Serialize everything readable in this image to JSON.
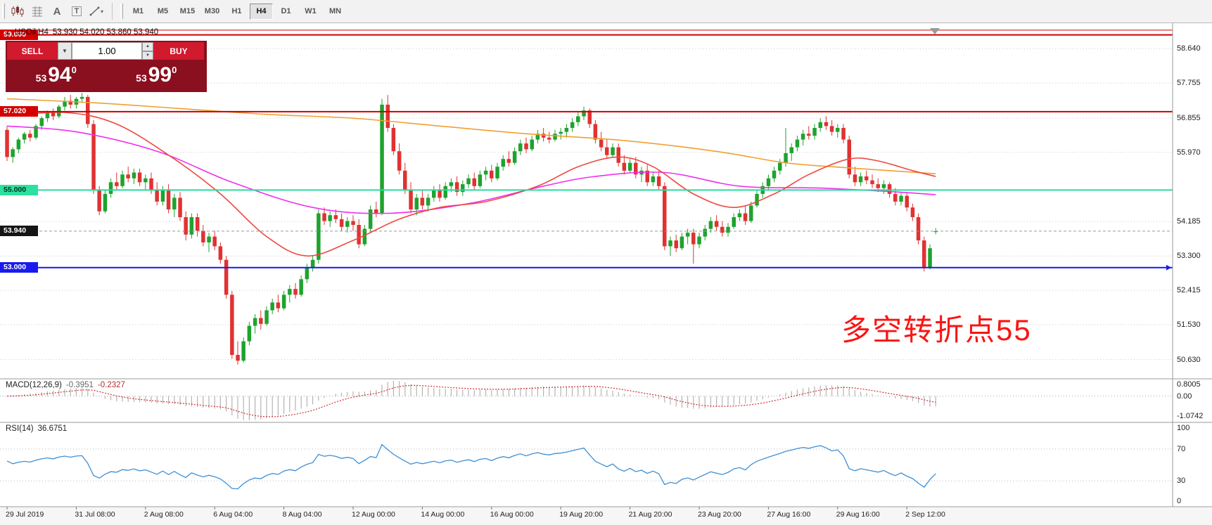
{
  "toolbar": {
    "icons": [
      {
        "name": "candlestick-chart-icon"
      },
      {
        "name": "chart-grid-icon"
      },
      {
        "name": "text-label-icon",
        "glyph": "A"
      },
      {
        "name": "text-box-icon",
        "glyph": "T"
      },
      {
        "name": "drawing-tools-icon",
        "glyph": "▾"
      }
    ],
    "timeframes": [
      {
        "label": "M1",
        "active": false
      },
      {
        "label": "M5",
        "active": false
      },
      {
        "label": "M15",
        "active": false
      },
      {
        "label": "M30",
        "active": false
      },
      {
        "label": "H1",
        "active": false
      },
      {
        "label": "H4",
        "active": true
      },
      {
        "label": "D1",
        "active": false
      },
      {
        "label": "W1",
        "active": false
      },
      {
        "label": "MN",
        "active": false
      }
    ]
  },
  "chart_header": {
    "collapse_icon": "▲",
    "symbol": "USOil,H4",
    "ohlc": "53.930 54.020 53.860 53.940"
  },
  "trade_panel": {
    "sell_label": "SELL",
    "buy_label": "BUY",
    "volume": "1.00",
    "caret_down": "▼",
    "caret_up": "▲",
    "sell_price": {
      "small": "53",
      "big": "94",
      "sup": "0"
    },
    "buy_price": {
      "small": "53",
      "big": "99",
      "sup": "0"
    }
  },
  "annotation": {
    "text": "多空转折点55",
    "color": "#fa1414"
  },
  "indicators": {
    "macd": {
      "label": "MACD(12,26,9)",
      "value_main": "-0.3951",
      "value_signal": "-0.2327",
      "axis": [
        "0.8005",
        "0.00",
        "-1.0742"
      ]
    },
    "rsi": {
      "label": "RSI(14)",
      "value": "36.6751",
      "axis": [
        "100",
        "70",
        "30",
        "0"
      ],
      "levels": [
        70,
        30
      ]
    }
  },
  "chart_data": {
    "type": "candlestick",
    "symbol": "USOil",
    "timeframe": "H4",
    "current_price": 53.94,
    "price_axis": {
      "labels": [
        58.64,
        57.755,
        56.855,
        55.97,
        54.185,
        53.3,
        52.415,
        51.53,
        50.63
      ],
      "badges": [
        {
          "text": "59.000",
          "price": 59.0,
          "bg": "#d40000",
          "fg": "#ffffff"
        },
        {
          "text": "57.020",
          "price": 57.02,
          "bg": "#d40000",
          "fg": "#ffffff"
        },
        {
          "text": "55.000",
          "price": 55.0,
          "bg": "#2de0a0",
          "fg": "#00331f"
        },
        {
          "text": "53.940",
          "price": 53.94,
          "bg": "#141414",
          "fg": "#ffffff"
        },
        {
          "text": "53.000",
          "price": 53.0,
          "bg": "#1a1aee",
          "fg": "#ffffff"
        }
      ]
    },
    "hlines": [
      {
        "price": 59.12,
        "color": "#cc0000",
        "width": 1
      },
      {
        "price": 59.0,
        "color": "#cc0000",
        "width": 2
      },
      {
        "price": 57.02,
        "color": "#cc0000",
        "width": 2
      },
      {
        "price": 55.0,
        "color": "#27dc9c",
        "width": 2
      },
      {
        "price": 53.0,
        "color": "#1a1aee",
        "width": 2
      },
      {
        "price": 53.94,
        "color": "#999999",
        "width": 1,
        "dash": "4,3"
      }
    ],
    "x_axis": [
      {
        "label": "29 Jul 2019",
        "i": 0
      },
      {
        "label": "31 Jul 08:00",
        "i": 12
      },
      {
        "label": "2 Aug 08:00",
        "i": 24
      },
      {
        "label": "6 Aug 04:00",
        "i": 36
      },
      {
        "label": "8 Aug 04:00",
        "i": 48
      },
      {
        "label": "12 Aug 00:00",
        "i": 60
      },
      {
        "label": "14 Aug 00:00",
        "i": 72
      },
      {
        "label": "16 Aug 00:00",
        "i": 84
      },
      {
        "label": "19 Aug 20:00",
        "i": 96
      },
      {
        "label": "21 Aug 20:00",
        "i": 108
      },
      {
        "label": "23 Aug 20:00",
        "i": 120
      },
      {
        "label": "27 Aug 16:00",
        "i": 132
      },
      {
        "label": "29 Aug 16:00",
        "i": 144
      },
      {
        "label": "2 Sep 12:00",
        "i": 156
      }
    ],
    "moving_averages": [
      {
        "name": "ma-slow-orange",
        "color": "#f0a030",
        "points": [
          [
            0,
            57.35
          ],
          [
            15,
            57.25
          ],
          [
            30,
            57.1
          ],
          [
            45,
            56.95
          ],
          [
            60,
            56.85
          ],
          [
            75,
            56.65
          ],
          [
            90,
            56.45
          ],
          [
            105,
            56.3
          ],
          [
            115,
            56.15
          ],
          [
            125,
            55.95
          ],
          [
            135,
            55.7
          ],
          [
            145,
            55.58
          ],
          [
            155,
            55.48
          ],
          [
            161,
            55.42
          ]
        ]
      },
      {
        "name": "ma-mid-magenta",
        "color": "#ee30ee",
        "points": [
          [
            0,
            56.65
          ],
          [
            12,
            56.5
          ],
          [
            26,
            56.0
          ],
          [
            39,
            55.2
          ],
          [
            53,
            54.55
          ],
          [
            66,
            54.4
          ],
          [
            80,
            54.65
          ],
          [
            93,
            55.1
          ],
          [
            102,
            55.35
          ],
          [
            114,
            55.45
          ],
          [
            127,
            55.1
          ],
          [
            141,
            55.05
          ],
          [
            154,
            54.95
          ],
          [
            161,
            54.88
          ]
        ]
      },
      {
        "name": "ma-fast-red",
        "color": "#ee4840",
        "points": [
          [
            0,
            56.9
          ],
          [
            10,
            57.0
          ],
          [
            19,
            56.7
          ],
          [
            29,
            55.8
          ],
          [
            37,
            54.9
          ],
          [
            45,
            53.8
          ],
          [
            52,
            53.3
          ],
          [
            60,
            53.7
          ],
          [
            68,
            54.25
          ],
          [
            75,
            54.55
          ],
          [
            83,
            54.7
          ],
          [
            92,
            55.1
          ],
          [
            99,
            55.6
          ],
          [
            106,
            55.85
          ],
          [
            112,
            55.6
          ],
          [
            119,
            54.9
          ],
          [
            126,
            54.55
          ],
          [
            133,
            54.9
          ],
          [
            139,
            55.4
          ],
          [
            146,
            55.8
          ],
          [
            151,
            55.75
          ],
          [
            157,
            55.5
          ],
          [
            161,
            55.35
          ]
        ]
      }
    ],
    "colors": {
      "up": "#1ea32e",
      "down": "#e03232",
      "macd_hist": "#b4b4b4",
      "macd_signal": "#d03030",
      "rsi": "#3f8fd4",
      "grid": "#c9c9c9"
    },
    "candles": [
      [
        56.55,
        56.65,
        55.75,
        55.85
      ],
      [
        55.85,
        56.1,
        55.7,
        56.05
      ],
      [
        56.05,
        56.35,
        55.95,
        56.3
      ],
      [
        56.3,
        56.5,
        56.2,
        56.45
      ],
      [
        56.45,
        56.55,
        56.25,
        56.35
      ],
      [
        56.35,
        56.7,
        56.3,
        56.65
      ],
      [
        56.65,
        56.9,
        56.55,
        56.85
      ],
      [
        56.85,
        57.05,
        56.75,
        57.0
      ],
      [
        57.0,
        57.1,
        56.8,
        56.9
      ],
      [
        56.9,
        57.2,
        56.85,
        57.15
      ],
      [
        57.15,
        57.4,
        57.05,
        57.3
      ],
      [
        57.3,
        57.45,
        57.1,
        57.2
      ],
      [
        57.2,
        57.4,
        57.1,
        57.35
      ],
      [
        57.35,
        57.5,
        57.25,
        57.4
      ],
      [
        57.4,
        57.45,
        56.6,
        56.7
      ],
      [
        56.7,
        56.8,
        54.9,
        55.0
      ],
      [
        55.0,
        55.1,
        54.35,
        54.45
      ],
      [
        54.45,
        55.0,
        54.4,
        54.9
      ],
      [
        54.9,
        55.3,
        54.8,
        55.2
      ],
      [
        55.2,
        55.45,
        55.0,
        55.1
      ],
      [
        55.1,
        55.5,
        55.05,
        55.4
      ],
      [
        55.4,
        55.6,
        55.2,
        55.3
      ],
      [
        55.3,
        55.55,
        55.15,
        55.45
      ],
      [
        55.45,
        55.55,
        55.1,
        55.2
      ],
      [
        55.2,
        55.4,
        55.0,
        55.3
      ],
      [
        55.3,
        55.45,
        54.9,
        55.0
      ],
      [
        55.0,
        55.2,
        54.6,
        54.7
      ],
      [
        54.7,
        55.1,
        54.6,
        55.0
      ],
      [
        55.0,
        55.15,
        54.4,
        54.5
      ],
      [
        54.5,
        54.9,
        54.3,
        54.8
      ],
      [
        54.8,
        54.95,
        54.2,
        54.3
      ],
      [
        54.3,
        54.45,
        53.7,
        53.85
      ],
      [
        53.85,
        54.4,
        53.75,
        54.3
      ],
      [
        54.3,
        54.4,
        53.8,
        53.95
      ],
      [
        53.95,
        54.1,
        53.55,
        53.65
      ],
      [
        53.65,
        53.9,
        53.4,
        53.8
      ],
      [
        53.8,
        53.95,
        53.45,
        53.55
      ],
      [
        53.55,
        53.65,
        53.1,
        53.2
      ],
      [
        53.2,
        53.3,
        52.2,
        52.3
      ],
      [
        52.3,
        52.4,
        50.65,
        50.75
      ],
      [
        50.75,
        51.1,
        50.5,
        50.6
      ],
      [
        50.6,
        51.2,
        50.55,
        51.1
      ],
      [
        51.1,
        51.6,
        51.0,
        51.5
      ],
      [
        51.5,
        51.8,
        51.3,
        51.7
      ],
      [
        51.7,
        51.9,
        51.4,
        51.55
      ],
      [
        51.55,
        52.0,
        51.5,
        51.9
      ],
      [
        51.9,
        52.2,
        51.8,
        52.1
      ],
      [
        52.1,
        52.3,
        51.85,
        51.95
      ],
      [
        51.95,
        52.4,
        51.9,
        52.3
      ],
      [
        52.3,
        52.55,
        52.1,
        52.45
      ],
      [
        52.45,
        52.6,
        52.2,
        52.3
      ],
      [
        52.3,
        52.8,
        52.25,
        52.7
      ],
      [
        52.7,
        53.1,
        52.6,
        53.0
      ],
      [
        53.0,
        53.3,
        52.9,
        53.2
      ],
      [
        53.2,
        54.5,
        53.1,
        54.4
      ],
      [
        54.4,
        54.55,
        54.1,
        54.2
      ],
      [
        54.2,
        54.45,
        54.05,
        54.35
      ],
      [
        54.35,
        54.5,
        54.15,
        54.25
      ],
      [
        54.25,
        54.4,
        53.95,
        54.05
      ],
      [
        54.05,
        54.3,
        53.9,
        54.2
      ],
      [
        54.2,
        54.35,
        53.95,
        54.1
      ],
      [
        54.1,
        54.25,
        53.5,
        53.6
      ],
      [
        53.6,
        54.1,
        53.55,
        54.0
      ],
      [
        54.0,
        54.6,
        53.9,
        54.5
      ],
      [
        54.5,
        54.7,
        54.3,
        54.4
      ],
      [
        54.4,
        57.35,
        54.35,
        57.2
      ],
      [
        57.2,
        57.45,
        56.5,
        56.6
      ],
      [
        56.6,
        56.7,
        55.9,
        56.0
      ],
      [
        56.0,
        56.2,
        55.4,
        55.5
      ],
      [
        55.5,
        55.7,
        54.9,
        55.0
      ],
      [
        55.0,
        55.2,
        54.4,
        54.5
      ],
      [
        54.5,
        54.9,
        54.35,
        54.8
      ],
      [
        54.8,
        55.0,
        54.5,
        54.6
      ],
      [
        54.6,
        54.9,
        54.45,
        54.8
      ],
      [
        54.8,
        55.1,
        54.7,
        55.0
      ],
      [
        55.0,
        55.15,
        54.7,
        54.8
      ],
      [
        54.8,
        55.2,
        54.75,
        55.1
      ],
      [
        55.1,
        55.3,
        54.95,
        55.2
      ],
      [
        55.2,
        55.35,
        54.85,
        54.95
      ],
      [
        54.95,
        55.25,
        54.85,
        55.15
      ],
      [
        55.15,
        55.4,
        55.05,
        55.3
      ],
      [
        55.3,
        55.45,
        55.0,
        55.1
      ],
      [
        55.1,
        55.5,
        55.05,
        55.4
      ],
      [
        55.4,
        55.6,
        55.25,
        55.5
      ],
      [
        55.5,
        55.65,
        55.2,
        55.3
      ],
      [
        55.3,
        55.7,
        55.25,
        55.6
      ],
      [
        55.6,
        55.9,
        55.5,
        55.8
      ],
      [
        55.8,
        56.0,
        55.6,
        55.7
      ],
      [
        55.7,
        56.1,
        55.65,
        56.0
      ],
      [
        56.0,
        56.3,
        55.9,
        56.2
      ],
      [
        56.2,
        56.35,
        55.95,
        56.05
      ],
      [
        56.05,
        56.4,
        56.0,
        56.3
      ],
      [
        56.3,
        56.55,
        56.2,
        56.45
      ],
      [
        56.45,
        56.6,
        56.25,
        56.35
      ],
      [
        56.35,
        56.5,
        56.2,
        56.3
      ],
      [
        56.3,
        56.55,
        56.25,
        56.45
      ],
      [
        56.45,
        56.6,
        56.3,
        56.5
      ],
      [
        56.5,
        56.7,
        56.35,
        56.6
      ],
      [
        56.6,
        56.85,
        56.5,
        56.75
      ],
      [
        56.75,
        57.0,
        56.65,
        56.9
      ],
      [
        56.9,
        57.15,
        56.8,
        57.05
      ],
      [
        57.05,
        57.1,
        56.6,
        56.7
      ],
      [
        56.7,
        56.8,
        56.2,
        56.3
      ],
      [
        56.3,
        56.5,
        56.0,
        56.1
      ],
      [
        56.1,
        56.3,
        55.8,
        55.9
      ],
      [
        55.9,
        56.2,
        55.85,
        56.1
      ],
      [
        56.1,
        56.2,
        55.6,
        55.7
      ],
      [
        55.7,
        55.9,
        55.4,
        55.5
      ],
      [
        55.5,
        55.8,
        55.45,
        55.7
      ],
      [
        55.7,
        55.85,
        55.3,
        55.4
      ],
      [
        55.4,
        55.6,
        55.2,
        55.5
      ],
      [
        55.5,
        55.65,
        55.1,
        55.2
      ],
      [
        55.2,
        55.45,
        55.1,
        55.35
      ],
      [
        55.35,
        55.5,
        55.0,
        55.1
      ],
      [
        55.1,
        55.2,
        53.45,
        53.55
      ],
      [
        53.55,
        53.8,
        53.3,
        53.7
      ],
      [
        53.7,
        53.85,
        53.4,
        53.5
      ],
      [
        53.5,
        53.9,
        53.45,
        53.8
      ],
      [
        53.8,
        54.0,
        53.6,
        53.9
      ],
      [
        53.9,
        54.0,
        53.1,
        53.6
      ],
      [
        53.6,
        53.9,
        53.5,
        53.8
      ],
      [
        53.8,
        54.1,
        53.7,
        54.0
      ],
      [
        54.0,
        54.3,
        53.9,
        54.2
      ],
      [
        54.2,
        54.35,
        53.95,
        54.05
      ],
      [
        54.05,
        54.2,
        53.8,
        53.9
      ],
      [
        53.9,
        54.15,
        53.8,
        54.05
      ],
      [
        54.05,
        54.4,
        54.0,
        54.3
      ],
      [
        54.3,
        54.5,
        54.2,
        54.4
      ],
      [
        54.4,
        54.6,
        54.1,
        54.2
      ],
      [
        54.2,
        54.7,
        54.15,
        54.6
      ],
      [
        54.6,
        55.0,
        54.55,
        54.9
      ],
      [
        54.9,
        55.2,
        54.8,
        55.1
      ],
      [
        55.1,
        55.4,
        55.0,
        55.3
      ],
      [
        55.3,
        55.6,
        55.2,
        55.5
      ],
      [
        55.5,
        55.8,
        55.4,
        55.7
      ],
      [
        55.7,
        56.6,
        55.6,
        55.95
      ],
      [
        55.95,
        56.2,
        55.75,
        56.1
      ],
      [
        56.1,
        56.4,
        56.0,
        56.3
      ],
      [
        56.3,
        56.55,
        56.15,
        56.45
      ],
      [
        56.45,
        56.65,
        56.3,
        56.4
      ],
      [
        56.4,
        56.7,
        56.3,
        56.6
      ],
      [
        56.6,
        56.85,
        56.5,
        56.75
      ],
      [
        56.75,
        56.9,
        56.55,
        56.65
      ],
      [
        56.65,
        56.8,
        56.4,
        56.5
      ],
      [
        56.5,
        56.7,
        56.35,
        56.6
      ],
      [
        56.6,
        56.7,
        56.2,
        56.3
      ],
      [
        56.3,
        56.4,
        55.3,
        55.4
      ],
      [
        55.4,
        55.6,
        55.1,
        55.2
      ],
      [
        55.2,
        55.45,
        55.1,
        55.35
      ],
      [
        55.35,
        55.5,
        55.15,
        55.25
      ],
      [
        55.25,
        55.4,
        55.05,
        55.15
      ],
      [
        55.15,
        55.3,
        54.95,
        55.05
      ],
      [
        55.05,
        55.25,
        54.9,
        55.15
      ],
      [
        55.15,
        55.2,
        54.8,
        54.9
      ],
      [
        54.9,
        55.05,
        54.6,
        54.7
      ],
      [
        54.7,
        54.95,
        54.6,
        54.85
      ],
      [
        54.85,
        54.95,
        54.45,
        54.55
      ],
      [
        54.55,
        54.65,
        54.2,
        54.3
      ],
      [
        54.3,
        54.4,
        53.6,
        53.7
      ],
      [
        53.7,
        53.8,
        52.9,
        53.0
      ],
      [
        53.0,
        53.6,
        52.95,
        53.5
      ],
      [
        53.93,
        54.02,
        53.86,
        53.94
      ]
    ]
  }
}
